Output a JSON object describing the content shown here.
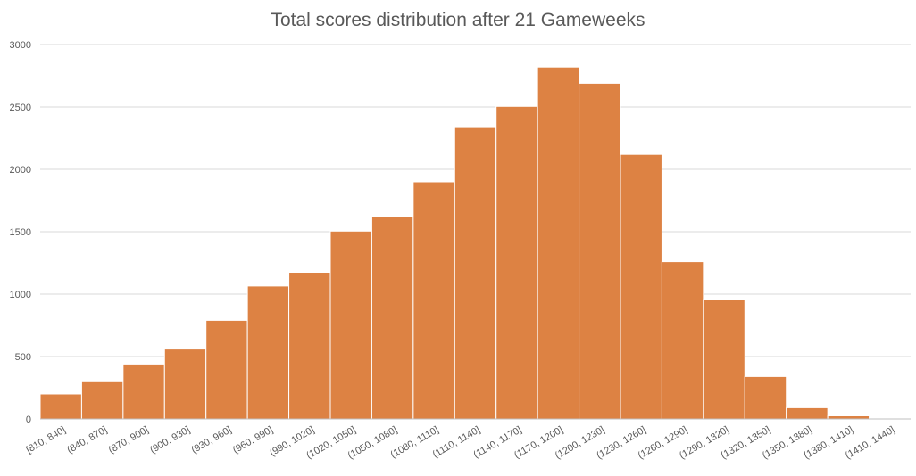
{
  "chart_data": {
    "type": "bar",
    "title": "Total scores distribution after 21 Gameweeks",
    "xlabel": "",
    "ylabel": "",
    "categories": [
      "[810, 840]",
      "(840, 870]",
      "(870, 900]",
      "(900, 930]",
      "(930, 960]",
      "(960, 990]",
      "(990, 1020]",
      "(1020, 1050]",
      "(1050, 1080]",
      "(1080, 1110]",
      "(1110, 1140]",
      "(1140, 1170]",
      "(1170, 1200]",
      "(1200, 1230]",
      "(1230, 1260]",
      "(1260, 1290]",
      "(1290, 1320]",
      "(1320, 1350]",
      "(1350, 1380]",
      "(1380, 1410]",
      "(1410, 1440]"
    ],
    "values": [
      200,
      305,
      440,
      560,
      790,
      1065,
      1175,
      1505,
      1625,
      1900,
      2335,
      2505,
      2820,
      2690,
      2120,
      1260,
      960,
      340,
      90,
      25,
      5
    ],
    "ylim": [
      0,
      3000
    ],
    "yticks": [
      0,
      500,
      1000,
      1500,
      2000,
      2500,
      3000
    ],
    "grid": true,
    "legend": "none",
    "bar_color": "#dd8243"
  }
}
